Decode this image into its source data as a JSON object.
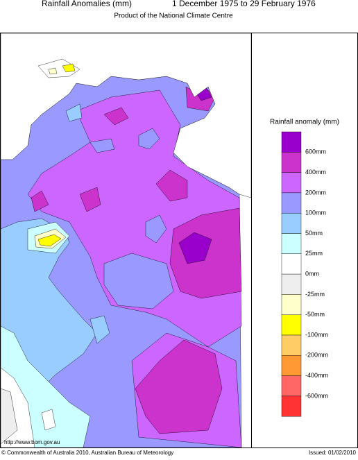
{
  "header": {
    "title": "Rainfall Anomalies (mm)",
    "period": "1 December 1975 to 29 February 1976",
    "subtitle": "Product of the National Climate Centre"
  },
  "legend": {
    "title": "Rainfall anomaly (mm)",
    "labels": [
      "600mm",
      "400mm",
      "200mm",
      "100mm",
      "50mm",
      "25mm",
      "0mm",
      "-25mm",
      "-50mm",
      "-100mm",
      "-200mm",
      "-400mm",
      "-600mm"
    ],
    "colors": [
      "#9900cc",
      "#cc33cc",
      "#cc66ff",
      "#9999ff",
      "#99ccff",
      "#ccffff",
      "#ffffff",
      "#eeeeee",
      "#ffffcc",
      "#ffff00",
      "#ffcc66",
      "#ff9933",
      "#ff6666",
      "#ff3333"
    ]
  },
  "footer": {
    "url": "http://www.bom.gov.au",
    "copyright": "© Commonwealth of Australia 2010, Australian Bureau of Meteorology",
    "issued": "Issued: 01/02/2010"
  }
}
